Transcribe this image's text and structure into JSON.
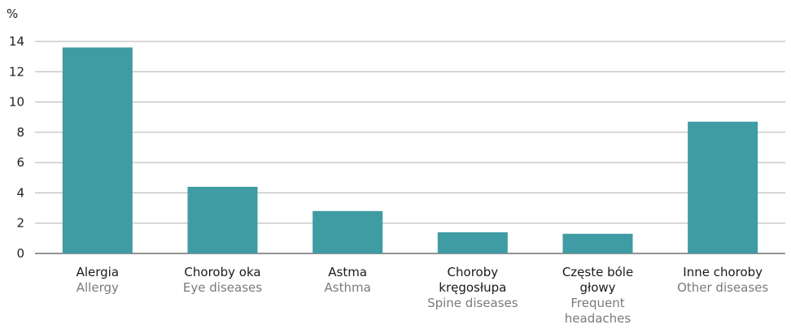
{
  "chart_data": {
    "type": "bar",
    "ylabel": "%",
    "ylim": [
      0,
      14
    ],
    "yticks": [
      0,
      2,
      4,
      6,
      8,
      10,
      12,
      14
    ],
    "grid": true,
    "bar_color": "#3f9ba4",
    "grid_color": "#b0b0b0",
    "categories": [
      {
        "pl": [
          "Alergia"
        ],
        "en": [
          "Allergy"
        ]
      },
      {
        "pl": [
          "Choroby oka"
        ],
        "en": [
          "Eye diseases"
        ]
      },
      {
        "pl": [
          "Astma"
        ],
        "en": [
          "Asthma"
        ]
      },
      {
        "pl": [
          "Choroby",
          "kręgosłupa"
        ],
        "en": [
          "Spine diseases"
        ]
      },
      {
        "pl": [
          "Częste bóle",
          "głowy"
        ],
        "en": [
          "Frequent",
          "headaches"
        ]
      },
      {
        "pl": [
          "Inne choroby"
        ],
        "en": [
          "Other diseases"
        ]
      }
    ],
    "values": [
      13.6,
      4.4,
      2.8,
      1.4,
      1.3,
      8.7
    ]
  }
}
